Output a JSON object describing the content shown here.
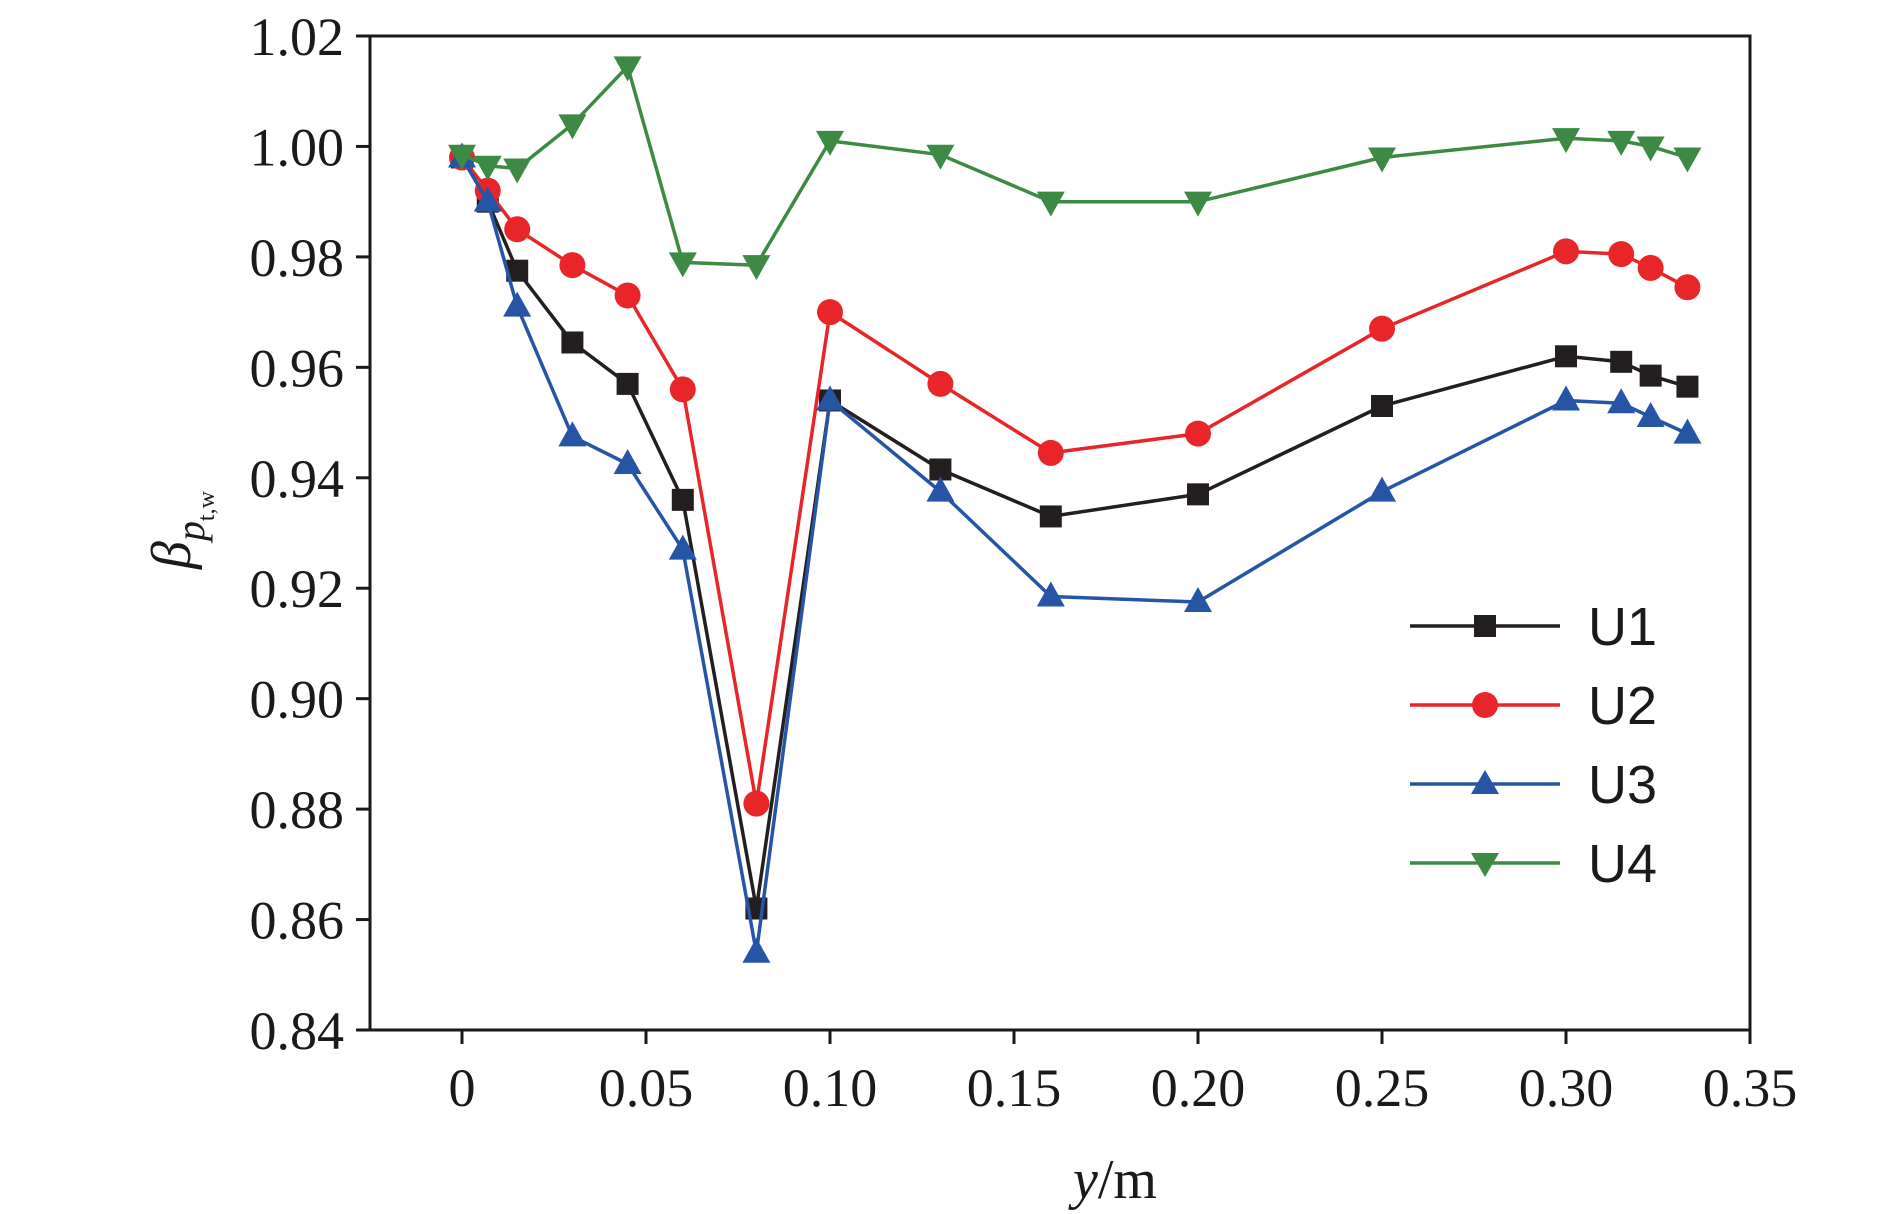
{
  "chart_data": {
    "type": "line",
    "xlabel_italic": "y",
    "xlabel_unit": "/m",
    "ylabel_symbol": "β",
    "ylabel_sub": "p",
    "ylabel_subsub": "t,w",
    "xlim": [
      -0.025,
      0.35
    ],
    "ylim": [
      0.84,
      1.02
    ],
    "xticks": [
      0,
      0.05,
      0.1,
      0.15,
      0.2,
      0.25,
      0.3,
      0.35
    ],
    "xtick_labels": [
      "0",
      "0.05",
      "0.10",
      "0.15",
      "0.20",
      "0.25",
      "0.30",
      "0.35"
    ],
    "yticks": [
      0.84,
      0.86,
      0.88,
      0.9,
      0.92,
      0.94,
      0.96,
      0.98,
      1.0,
      1.02
    ],
    "ytick_labels": [
      "0.84",
      "0.86",
      "0.88",
      "0.90",
      "0.92",
      "0.94",
      "0.96",
      "0.98",
      "1.00",
      "1.02"
    ],
    "grid": false,
    "legend_position": "bottom-right",
    "x": [
      0,
      0.007,
      0.015,
      0.03,
      0.045,
      0.06,
      0.08,
      0.1,
      0.13,
      0.16,
      0.2,
      0.25,
      0.3,
      0.315,
      0.323,
      0.333
    ],
    "series": [
      {
        "name": "U1",
        "color": "#231f20",
        "marker": "square",
        "values": [
          0.998,
          0.99,
          0.9775,
          0.9645,
          0.957,
          0.936,
          0.862,
          0.954,
          0.9415,
          0.933,
          0.937,
          0.953,
          0.962,
          0.961,
          0.9585,
          0.9565
        ]
      },
      {
        "name": "U2",
        "color": "#e8262a",
        "marker": "circle",
        "values": [
          0.998,
          0.992,
          0.985,
          0.9785,
          0.973,
          0.956,
          0.881,
          0.97,
          0.957,
          0.9445,
          0.948,
          0.967,
          0.981,
          0.9805,
          0.978,
          0.9745
        ]
      },
      {
        "name": "U3",
        "color": "#2655a6",
        "marker": "triangle-up",
        "values": [
          0.998,
          0.99,
          0.971,
          0.9475,
          0.9425,
          0.927,
          0.854,
          0.954,
          0.9375,
          0.9185,
          0.9175,
          0.9375,
          0.954,
          0.9535,
          0.951,
          0.948
        ]
      },
      {
        "name": "U4",
        "color": "#3d8a44",
        "marker": "triangle-down",
        "values": [
          0.9985,
          0.9965,
          0.996,
          1.004,
          1.0145,
          0.979,
          0.9785,
          1.001,
          0.9985,
          0.99,
          0.99,
          0.998,
          1.0015,
          1.001,
          1.0,
          0.998
        ]
      }
    ]
  }
}
